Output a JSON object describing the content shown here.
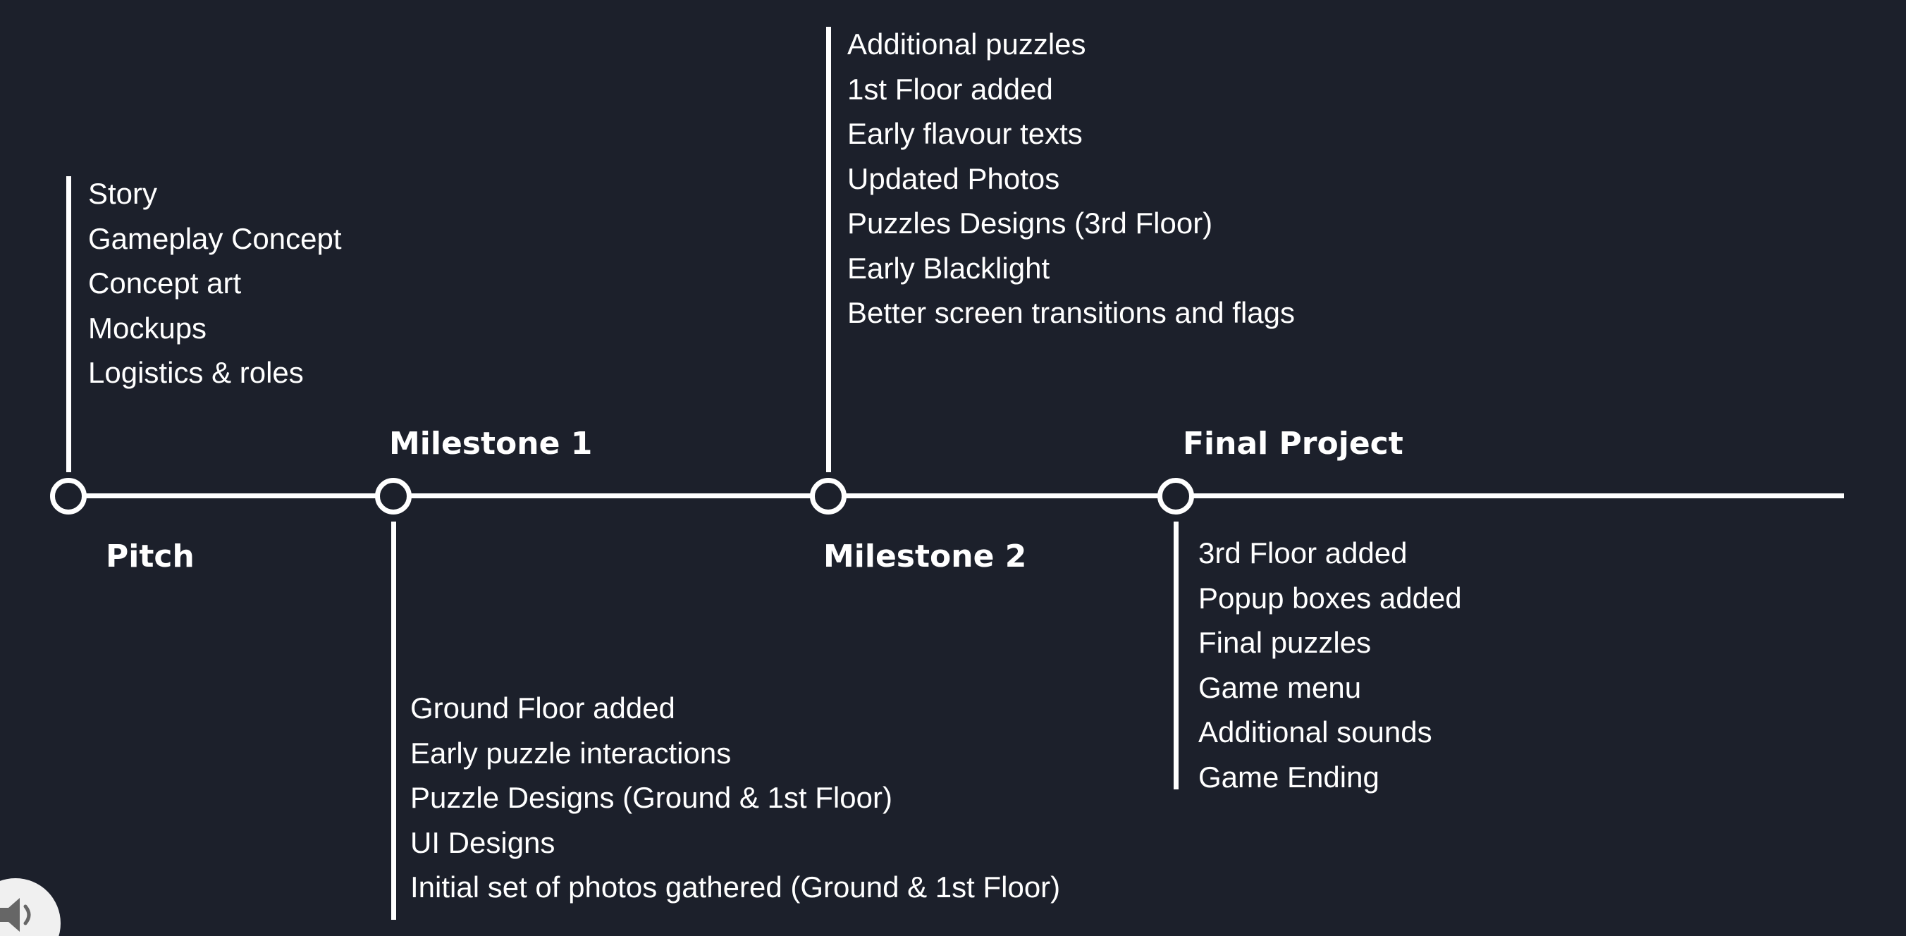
{
  "milestones": {
    "pitch": {
      "title": "Pitch",
      "items": [
        "Story",
        "Gameplay Concept",
        "Concept art",
        "Mockups",
        "Logistics & roles"
      ]
    },
    "milestone1": {
      "title": "Milestone 1",
      "items": [
        "Ground Floor added",
        "Early puzzle interactions",
        "Puzzle Designs (Ground & 1st Floor)",
        "UI Designs",
        "Initial set of photos gathered (Ground & 1st Floor)"
      ]
    },
    "milestone2": {
      "title": "Milestone 2",
      "items": [
        "Additional puzzles",
        "1st Floor added",
        "Early flavour texts",
        "Updated Photos",
        "Puzzles Designs (3rd Floor)",
        "Early Blacklight",
        "Better screen transitions and flags"
      ]
    },
    "final": {
      "title": "Final Project",
      "items": [
        "3rd Floor added",
        "Popup boxes added",
        "Final puzzles",
        "Game menu",
        "Additional sounds",
        "Game Ending"
      ]
    }
  },
  "colors": {
    "background": "#1c202b",
    "foreground": "#ffffff"
  },
  "icons": {
    "audio": "speaker-icon"
  }
}
